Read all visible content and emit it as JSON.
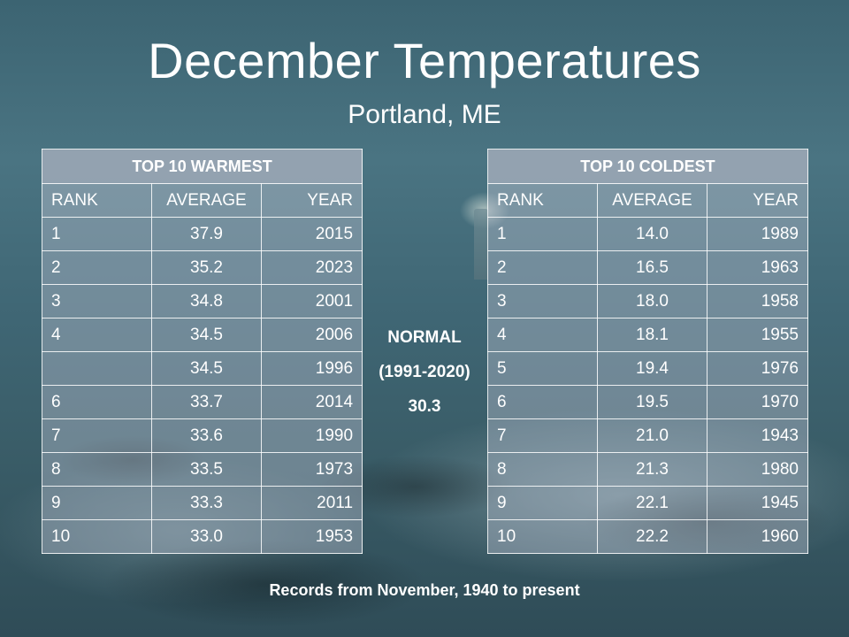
{
  "title": "December Temperatures",
  "subtitle": "Portland, ME",
  "warmest": {
    "header": "TOP 10 WARMEST",
    "columns": [
      "RANK",
      "AVERAGE",
      "YEAR"
    ],
    "rows": [
      {
        "rank": "1",
        "average": "37.9",
        "year": "2015"
      },
      {
        "rank": "2",
        "average": "35.2",
        "year": "2023"
      },
      {
        "rank": "3",
        "average": "34.8",
        "year": "2001"
      },
      {
        "rank": "4",
        "average": "34.5",
        "year": "2006"
      },
      {
        "rank": "",
        "average": "34.5",
        "year": "1996"
      },
      {
        "rank": "6",
        "average": "33.7",
        "year": "2014"
      },
      {
        "rank": "7",
        "average": "33.6",
        "year": "1990"
      },
      {
        "rank": "8",
        "average": "33.5",
        "year": "1973"
      },
      {
        "rank": "9",
        "average": "33.3",
        "year": "2011"
      },
      {
        "rank": "10",
        "average": "33.0",
        "year": "1953"
      }
    ]
  },
  "coldest": {
    "header": "TOP 10 COLDEST",
    "columns": [
      "RANK",
      "AVERAGE",
      "YEAR"
    ],
    "rows": [
      {
        "rank": "1",
        "average": "14.0",
        "year": "1989"
      },
      {
        "rank": "2",
        "average": "16.5",
        "year": "1963"
      },
      {
        "rank": "3",
        "average": "18.0",
        "year": "1958"
      },
      {
        "rank": "4",
        "average": "18.1",
        "year": "1955"
      },
      {
        "rank": "5",
        "average": "19.4",
        "year": "1976"
      },
      {
        "rank": "6",
        "average": "19.5",
        "year": "1970"
      },
      {
        "rank": "7",
        "average": "21.0",
        "year": "1943"
      },
      {
        "rank": "8",
        "average": "21.3",
        "year": "1980"
      },
      {
        "rank": "9",
        "average": "22.1",
        "year": "1945"
      },
      {
        "rank": "10",
        "average": "22.2",
        "year": "1960"
      }
    ]
  },
  "normal": {
    "label": "NORMAL",
    "period": "(1991-2020)",
    "value": "30.3"
  },
  "footer": "Records from November, 1940 to present"
}
